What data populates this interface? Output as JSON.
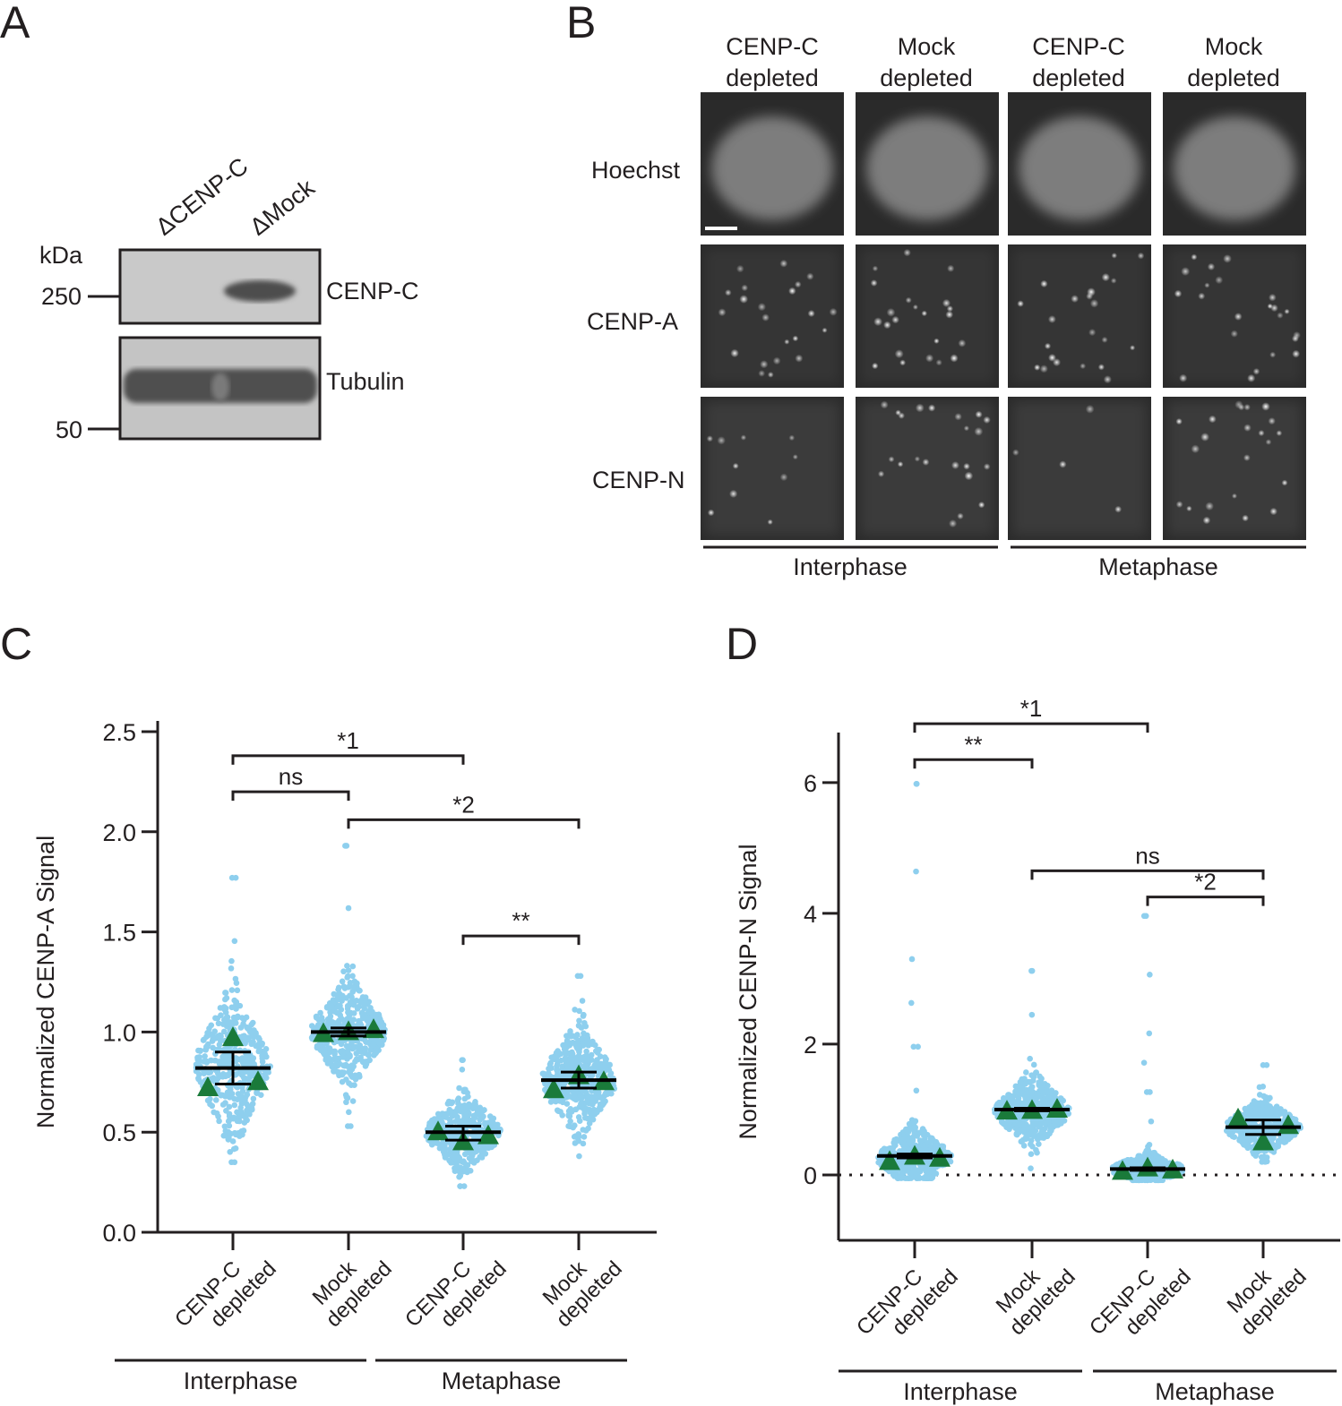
{
  "panels": {
    "A": {
      "letter": "A",
      "unit": "kDa",
      "lanes": [
        "ΔCENP-C",
        "ΔMock"
      ],
      "markers": [
        "250",
        "50"
      ],
      "bands": [
        "CENP-C",
        "Tubulin"
      ]
    },
    "B": {
      "letter": "B",
      "columns": [
        "CENP-C depleted",
        "Mock depleted",
        "CENP-C depleted",
        "Mock depleted"
      ],
      "rows": [
        "Hoechst",
        "CENP-A",
        "CENP-N"
      ],
      "groups": [
        "Interphase",
        "Metaphase"
      ]
    },
    "C": {
      "letter": "C"
    },
    "D": {
      "letter": "D"
    }
  },
  "chart_data": [
    {
      "id": "C",
      "type": "scatter",
      "ylabel": "Normalized CENP-A Signal",
      "ylim": [
        0.0,
        2.5
      ],
      "yticks": [
        "0.0",
        "0.5",
        "1.0",
        "1.5",
        "2.0",
        "2.5"
      ],
      "categories": [
        "CENP-C depleted",
        "Mock depleted",
        "CENP-C depleted",
        "Mock depleted"
      ],
      "groups": [
        "Interphase",
        "Metaphase"
      ],
      "points_color": "#8ecfee",
      "replicate_color": "#1a7a3a",
      "means": [
        0.82,
        1.0,
        0.5,
        0.76
      ],
      "error_low": [
        0.74,
        0.98,
        0.46,
        0.72
      ],
      "error_high": [
        0.9,
        1.02,
        0.53,
        0.8
      ],
      "replicates": [
        [
          0.72,
          0.97,
          0.75
        ],
        [
          0.99,
          1.0,
          1.01
        ],
        [
          0.5,
          0.45,
          0.48
        ],
        [
          0.71,
          0.78,
          0.75
        ]
      ],
      "spread": [
        {
          "min": 0.35,
          "max": 1.77,
          "q1": 0.72,
          "q3": 0.94,
          "n": 420
        },
        {
          "min": 0.53,
          "max": 1.93,
          "q1": 0.92,
          "q3": 1.08,
          "n": 460
        },
        {
          "min": 0.23,
          "max": 0.86,
          "q1": 0.44,
          "q3": 0.56,
          "n": 420
        },
        {
          "min": 0.38,
          "max": 1.28,
          "q1": 0.68,
          "q3": 0.84,
          "n": 460
        }
      ],
      "significance": [
        {
          "from": 0,
          "to": 2,
          "label": "*1",
          "y": 2.38
        },
        {
          "from": 0,
          "to": 1,
          "label": "ns",
          "y": 2.2
        },
        {
          "from": 1,
          "to": 3,
          "label": "*2",
          "y": 2.06
        },
        {
          "from": 2,
          "to": 3,
          "label": "**",
          "y": 1.48
        }
      ]
    },
    {
      "id": "D",
      "type": "scatter",
      "ylabel": "Normalized CENP-N Signal",
      "ylim": [
        -1,
        6.6
      ],
      "yticks": [
        "0",
        "2",
        "4",
        "6"
      ],
      "categories": [
        "CENP-C depleted",
        "Mock depleted",
        "CENP-C depleted",
        "Mock depleted"
      ],
      "groups": [
        "Interphase",
        "Metaphase"
      ],
      "points_color": "#8ecfee",
      "replicate_color": "#1a7a3a",
      "means": [
        0.29,
        1.0,
        0.09,
        0.73
      ],
      "error_low": [
        0.26,
        0.98,
        0.07,
        0.62
      ],
      "error_high": [
        0.32,
        1.02,
        0.11,
        0.84
      ],
      "replicates": [
        [
          0.2,
          0.28,
          0.25
        ],
        [
          0.97,
          0.98,
          1.0
        ],
        [
          0.05,
          0.1,
          0.07
        ],
        [
          0.85,
          0.5,
          0.75
        ]
      ],
      "spread": [
        {
          "min": -0.05,
          "max": 5.98,
          "q1": 0.12,
          "q3": 0.4,
          "n": 420
        },
        {
          "min": 0.1,
          "max": 3.12,
          "q1": 0.82,
          "q3": 1.14,
          "n": 460
        },
        {
          "min": -0.08,
          "max": 3.96,
          "q1": 0.02,
          "q3": 0.16,
          "n": 420
        },
        {
          "min": 0.2,
          "max": 1.68,
          "q1": 0.6,
          "q3": 0.86,
          "n": 460
        }
      ],
      "significance": [
        {
          "from": 0,
          "to": 2,
          "label": "*1",
          "y": 6.9
        },
        {
          "from": 0,
          "to": 1,
          "label": "**",
          "y": 6.35
        },
        {
          "from": 1,
          "to": 3,
          "label": "ns",
          "y": 4.65
        },
        {
          "from": 2,
          "to": 3,
          "label": "*2",
          "y": 4.25
        }
      ],
      "reference_line": 0
    }
  ]
}
